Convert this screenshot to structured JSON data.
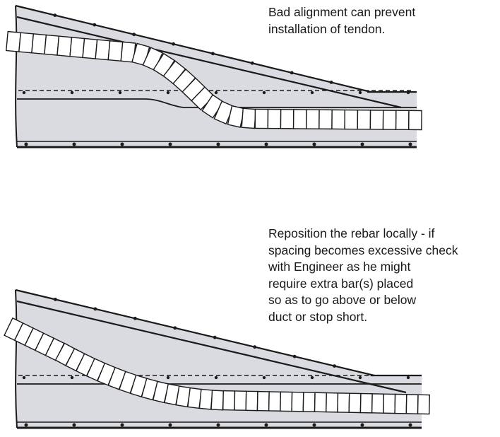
{
  "notes": {
    "top": {
      "lines": [
        "Bad alignment can prevent",
        "installation of tendon."
      ]
    },
    "bottom": {
      "lines": [
        "Reposition the rebar locally - if",
        "spacing becomes excessive check",
        "with Engineer as he might",
        "require extra bar(s) placed",
        "so as to go above or below",
        "duct or stop short."
      ]
    }
  },
  "colors": {
    "slab_fill": "#d9dbe0",
    "line": "#1a1a1a",
    "duct_fill": "#ffffff"
  }
}
